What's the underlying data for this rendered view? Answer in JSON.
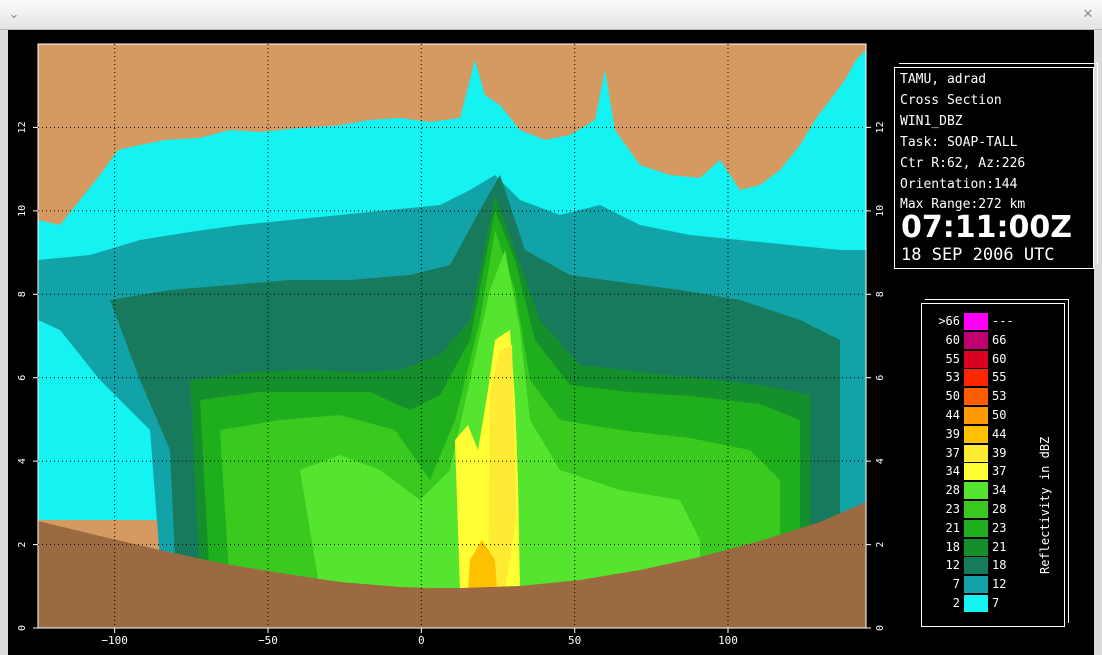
{
  "window": {
    "collapse_icon": "chevron-down-icon",
    "close_icon": "close-icon"
  },
  "info": {
    "lines": [
      "TAMU, adrad",
      "Cross Section",
      "WIN1_DBZ",
      "Task: SOAP-TALL",
      "Ctr R:62, Az:226",
      "Orientation:144",
      "Max Range:272 km"
    ],
    "time": "07:11:00Z",
    "date": "18 SEP 2006 UTC"
  },
  "legend": {
    "title": "Reflectivity in dBZ",
    "rows": [
      {
        "lo": ">66",
        "hi": "---",
        "color": "#ff00ff"
      },
      {
        "lo": "60",
        "hi": "66",
        "color": "#bf0073"
      },
      {
        "lo": "55",
        "hi": "60",
        "color": "#d9001f"
      },
      {
        "lo": "53",
        "hi": "55",
        "color": "#ff2600"
      },
      {
        "lo": "50",
        "hi": "53",
        "color": "#ff5c00"
      },
      {
        "lo": "44",
        "hi": "50",
        "color": "#ff9a00"
      },
      {
        "lo": "39",
        "hi": "44",
        "color": "#ffc000"
      },
      {
        "lo": "37",
        "hi": "39",
        "color": "#ffeb33"
      },
      {
        "lo": "34",
        "hi": "37",
        "color": "#ffff33"
      },
      {
        "lo": "28",
        "hi": "34",
        "color": "#55e52e"
      },
      {
        "lo": "23",
        "hi": "28",
        "color": "#39c91f"
      },
      {
        "lo": "21",
        "hi": "23",
        "color": "#1fae1c"
      },
      {
        "lo": "18",
        "hi": "21",
        "color": "#158f2b"
      },
      {
        "lo": "12",
        "hi": "18",
        "color": "#177a5c"
      },
      {
        "lo": "7",
        "hi": "12",
        "color": "#12a3a8"
      },
      {
        "lo": "2",
        "hi": "7",
        "color": "#15f2f2"
      }
    ]
  },
  "chart_data": {
    "type": "heatmap",
    "title": "",
    "xlabel": "",
    "ylabel": "",
    "xlim": [
      -125,
      145
    ],
    "ylim": [
      0,
      14
    ],
    "x_ticks": [
      -100,
      -50,
      0,
      50,
      100
    ],
    "y_ticks": [
      0,
      2,
      4,
      6,
      8,
      10,
      12
    ],
    "grid": true,
    "colors": {
      "sky": "#d49a62",
      "terrain": "#9b6a40",
      "echo_weak": "#15f2f2",
      "echo_core": "#ffff33"
    }
  }
}
